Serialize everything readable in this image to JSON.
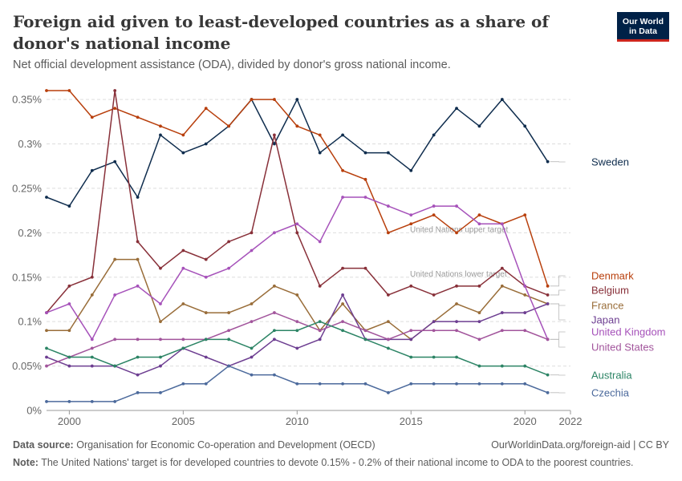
{
  "header": {
    "title": "Foreign aid given to least-developed countries as a share of donor's national income",
    "subtitle": "Net official development assistance (ODA), divided by donor's gross national income.",
    "logo_line1": "Our World",
    "logo_line2": "in Data"
  },
  "footer": {
    "source_label": "Data source:",
    "source_text": "Organisation for Economic Co-operation and Development (OECD)",
    "url": "OurWorldinData.org/foreign-aid | CC BY",
    "note_label": "Note:",
    "note_text": "The United Nations' target is for developed countries to devote 0.15% - 0.2% of their national income to ODA to the poorest countries."
  },
  "chart_data": {
    "type": "line",
    "x": [
      1999,
      2000,
      2001,
      2002,
      2003,
      2004,
      2005,
      2006,
      2007,
      2008,
      2009,
      2010,
      2011,
      2012,
      2013,
      2014,
      2015,
      2016,
      2017,
      2018,
      2019,
      2020,
      2021,
      2022
    ],
    "xlim": [
      1999,
      2022
    ],
    "ylim": [
      0,
      0.36
    ],
    "x_ticks": [
      {
        "value": 2000,
        "label": "2000"
      },
      {
        "value": 2005,
        "label": "2005"
      },
      {
        "value": 2010,
        "label": "2010"
      },
      {
        "value": 2015,
        "label": "2015"
      },
      {
        "value": 2020,
        "label": "2020"
      },
      {
        "value": 2022,
        "label": "2022"
      }
    ],
    "y_ticks": [
      {
        "value": 0,
        "label": "0%"
      },
      {
        "value": 0.05,
        "label": "0.05%"
      },
      {
        "value": 0.1,
        "label": "0.1%"
      },
      {
        "value": 0.15,
        "label": "0.15%"
      },
      {
        "value": 0.2,
        "label": "0.2%"
      },
      {
        "value": 0.25,
        "label": "0.25%"
      },
      {
        "value": 0.3,
        "label": "0.3%"
      },
      {
        "value": 0.35,
        "label": "0.35%"
      }
    ],
    "reference_lines": [
      {
        "value": 0.2,
        "label": "United Nations upper target"
      },
      {
        "value": 0.15,
        "label": "United Nations lower target"
      }
    ],
    "grid": true,
    "legend": "right",
    "series": [
      {
        "name": "Sweden",
        "color": "#0f2d4e",
        "values": [
          0.24,
          0.23,
          0.27,
          0.28,
          0.24,
          0.31,
          0.29,
          0.3,
          0.32,
          0.35,
          0.3,
          0.35,
          0.29,
          0.31,
          0.29,
          0.29,
          0.27,
          0.31,
          0.34,
          0.32,
          0.35,
          0.32,
          0.28,
          null
        ]
      },
      {
        "name": "Denmark",
        "color": "#b83f0c",
        "values": [
          0.36,
          0.36,
          0.33,
          0.34,
          0.33,
          0.32,
          0.31,
          0.34,
          0.32,
          0.35,
          0.35,
          0.32,
          0.31,
          0.27,
          0.26,
          0.2,
          0.21,
          0.22,
          0.2,
          0.22,
          0.21,
          0.22,
          0.14,
          null
        ]
      },
      {
        "name": "Belgium",
        "color": "#883039",
        "values": [
          0.11,
          0.14,
          0.15,
          0.36,
          0.19,
          0.16,
          0.18,
          0.17,
          0.19,
          0.2,
          0.31,
          0.2,
          0.14,
          0.16,
          0.16,
          0.13,
          0.14,
          0.13,
          0.14,
          0.14,
          0.16,
          0.14,
          0.13,
          null
        ]
      },
      {
        "name": "France",
        "color": "#996d39",
        "values": [
          0.09,
          0.09,
          0.13,
          0.17,
          0.17,
          0.1,
          0.12,
          0.11,
          0.11,
          0.12,
          0.14,
          0.13,
          0.09,
          0.12,
          0.09,
          0.1,
          0.08,
          0.1,
          0.12,
          0.11,
          0.14,
          0.13,
          0.12,
          null
        ]
      },
      {
        "name": "Japan",
        "color": "#6d3e91",
        "values": [
          0.06,
          0.05,
          0.05,
          0.05,
          0.04,
          0.05,
          0.07,
          0.06,
          0.05,
          0.06,
          0.08,
          0.07,
          0.08,
          0.13,
          0.08,
          0.08,
          0.08,
          0.1,
          0.1,
          0.1,
          0.11,
          0.11,
          0.12,
          null
        ]
      },
      {
        "name": "United Kingdom",
        "color": "#a652ba",
        "values": [
          0.11,
          0.12,
          0.08,
          0.13,
          0.14,
          0.12,
          0.16,
          0.15,
          0.16,
          0.18,
          0.2,
          0.21,
          0.19,
          0.24,
          0.24,
          0.23,
          0.22,
          0.23,
          0.23,
          0.21,
          0.21,
          0.14,
          0.08,
          null
        ]
      },
      {
        "name": "United States",
        "color": "#a2559c",
        "values": [
          0.05,
          0.06,
          0.07,
          0.08,
          0.08,
          0.08,
          0.08,
          0.08,
          0.09,
          0.1,
          0.11,
          0.1,
          0.09,
          0.1,
          0.09,
          0.08,
          0.09,
          0.09,
          0.09,
          0.08,
          0.09,
          0.09,
          0.08,
          null
        ]
      },
      {
        "name": "Australia",
        "color": "#2c8465",
        "values": [
          0.07,
          0.06,
          0.06,
          0.05,
          0.06,
          0.06,
          0.07,
          0.08,
          0.08,
          0.07,
          0.09,
          0.09,
          0.1,
          0.09,
          0.08,
          0.07,
          0.06,
          0.06,
          0.06,
          0.05,
          0.05,
          0.05,
          0.04,
          null
        ]
      },
      {
        "name": "Czechia",
        "color": "#4c6a9c",
        "values": [
          0.01,
          0.01,
          0.01,
          0.01,
          0.02,
          0.02,
          0.03,
          0.03,
          0.05,
          0.04,
          0.04,
          0.03,
          0.03,
          0.03,
          0.03,
          0.02,
          0.03,
          0.03,
          0.03,
          0.03,
          0.03,
          0.03,
          0.02,
          null
        ]
      }
    ]
  }
}
